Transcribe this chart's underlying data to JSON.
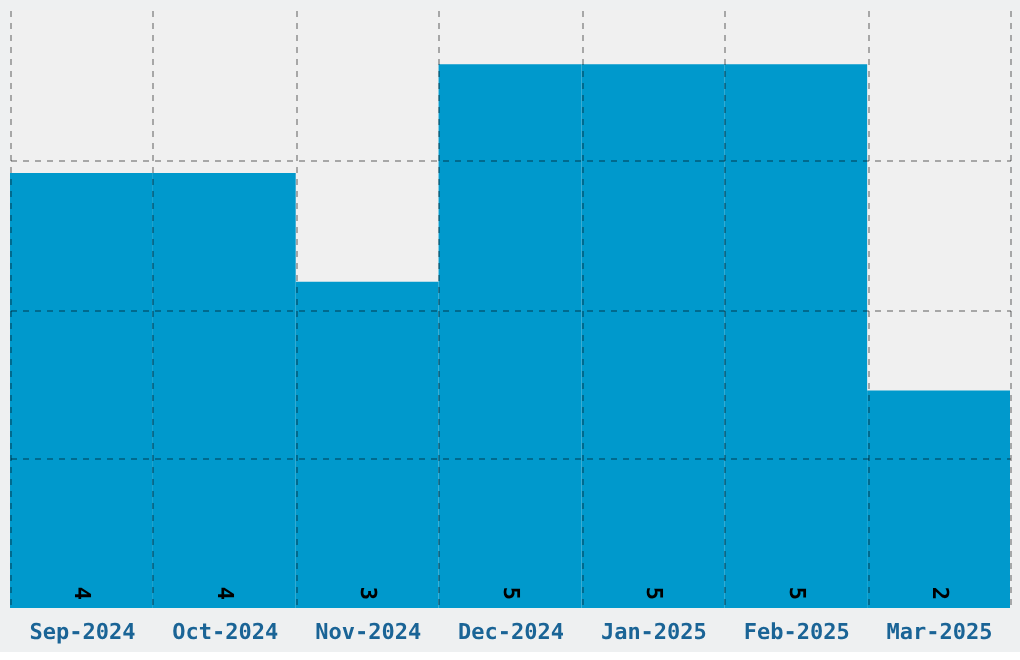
{
  "chart_data": {
    "type": "bar",
    "categories": [
      "Sep-2024",
      "Oct-2024",
      "Nov-2024",
      "Dec-2024",
      "Jan-2025",
      "Feb-2025",
      "Mar-2025"
    ],
    "values": [
      4,
      4,
      3,
      5,
      5,
      5,
      2
    ],
    "color": "#0099cc",
    "ylim": [
      0,
      5.5
    ],
    "yticks": [
      {
        "value": 1.375,
        "label": null
      },
      {
        "value": 2.75,
        "label": null
      },
      {
        "value": 4.125,
        "label": null
      }
    ],
    "tick_labels": "x",
    "grid": true,
    "data_labels": true
  }
}
